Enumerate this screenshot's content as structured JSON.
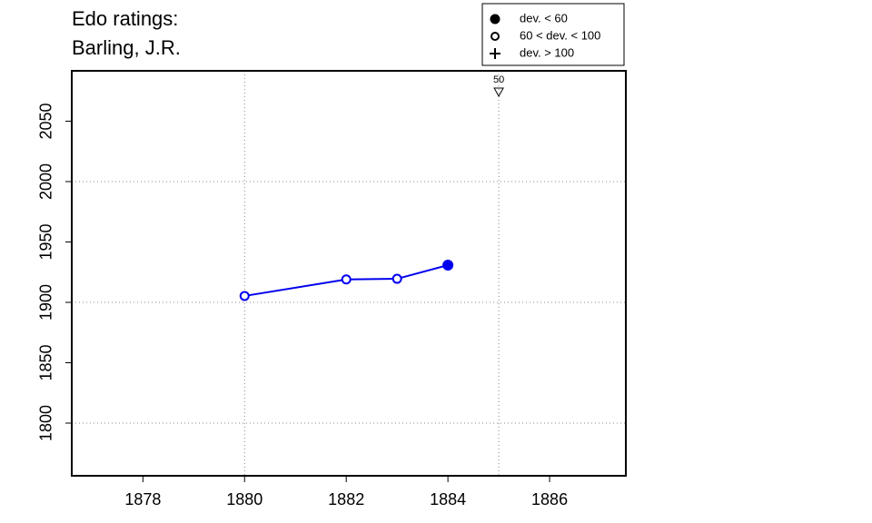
{
  "chart_data": {
    "type": "line",
    "title": [
      "Edo ratings:",
      "Barling, J.R."
    ],
    "x": [
      1880,
      1882,
      1883,
      1884
    ],
    "series": [
      {
        "color": "#0000ee",
        "values": [
          1905.3,
          1919,
          1919.5,
          1930.8
        ],
        "markers": [
          "open",
          "open",
          "open",
          "filled"
        ]
      }
    ],
    "xlim": [
      1876.6,
      1887.5
    ],
    "xticks": [
      1878,
      1880,
      1882,
      1884,
      1886
    ],
    "ylim": [
      1756.4,
      2091.7
    ],
    "yticks": [
      1800,
      1850,
      1900,
      1950,
      2000,
      2050
    ],
    "xgrid": [
      1880,
      1885
    ],
    "ygrid": [
      1800,
      1900,
      2000
    ],
    "annotations": [
      {
        "x": 1885,
        "label": "50"
      }
    ],
    "legend": {
      "position": "top-right",
      "entries": [
        {
          "label": "dev. < 60",
          "marker": "filled"
        },
        {
          "label": "60 < dev. < 100",
          "marker": "open"
        },
        {
          "label": "dev. > 100",
          "marker": "plus"
        }
      ]
    }
  }
}
